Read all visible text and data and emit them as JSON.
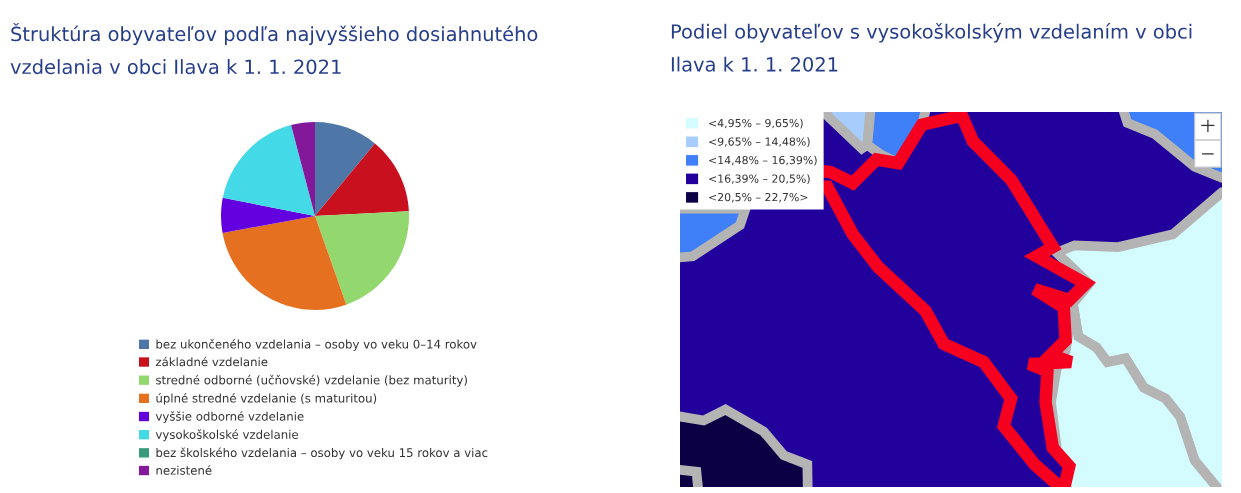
{
  "chart_data": [
    {
      "type": "pie",
      "title": "Štruktúra obyvateľov podľa najvyššieho dosiahnutého vzdelania v obci Ilava k 1. 1. 2021",
      "categories": [
        "bez ukončeného vzdelania – osoby vo veku 0–14 rokov",
        "základné vzdelanie",
        "stredné odborné (učňovské) vzdelanie (bez maturity)",
        "úplné stredné vzdelanie (s maturitou)",
        "vyššie odborné vzdelanie",
        "vysokoškolské vzdelanie",
        "bez školského vzdelania – osoby vo veku 15 rokov a viac",
        "nezistené"
      ],
      "values": [
        11.0,
        13.2,
        20.4,
        27.5,
        6.0,
        17.8,
        0,
        4.1
      ],
      "colors": [
        "#4e76a6",
        "#c9101f",
        "#93d86f",
        "#e5701f",
        "#6300e0",
        "#43d9e6",
        "#3a9a7d",
        "#84189a"
      ],
      "legend": "bottom"
    },
    {
      "type": "other",
      "title": "Podiel obyvateľov s vysokoškolským vzdelaním v obci Ilava k 1. 1. 2021",
      "categories": [
        "<4,95% – 9,65%)",
        "<9,65% – 14,48%)",
        "<14,48% – 16,39%)",
        "<16,39% – 20,5%)",
        "<20,5% – 22,7%>"
      ],
      "colors": [
        "#d4fcff",
        "#a6cdfb",
        "#3f7ff7",
        "#22009b",
        "#0c0044"
      ]
    }
  ]
}
